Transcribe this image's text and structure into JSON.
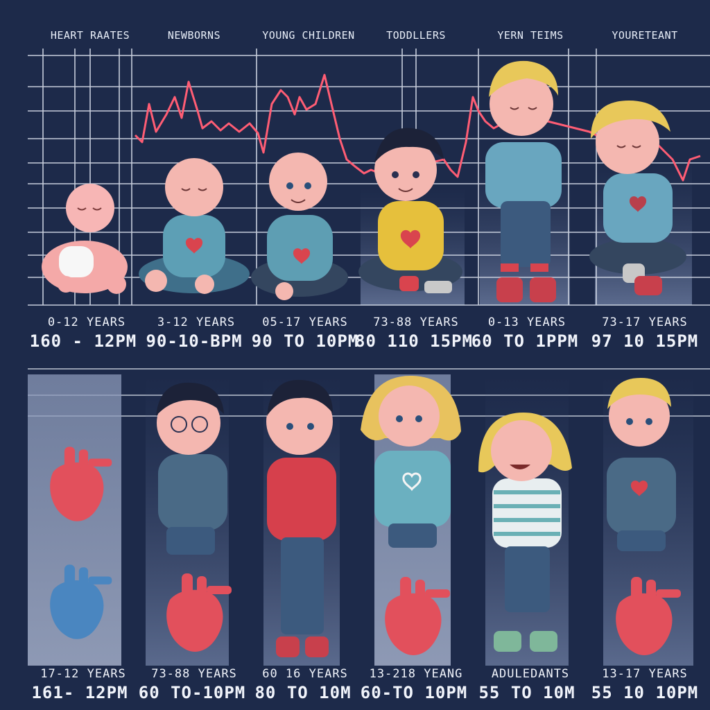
{
  "top_panel": {
    "headers": [
      "HEART RAATES",
      "NEWBORNS",
      "YOUNG CHILDREN",
      "TODDLLERS",
      "YERN TEIMS",
      "YOURETEANT"
    ],
    "ages": [
      "0-12 YEARS",
      "3-12 YEARS",
      "05-17 YEARS",
      "73-88 YEARS",
      "0-13 YEARS",
      "73-17 YEARS"
    ],
    "rates": [
      "160 - 12PM",
      "90-10-BPM",
      "90 TO 10PM",
      "80 110 15PM",
      "60 TO 1PPM",
      "97 10 15PM"
    ]
  },
  "bottom_panel": {
    "ages": [
      "17-12 YEARS",
      "73-88 YEARS",
      "60 16 YEARS",
      "13-218 YEANG",
      "ADULEDANTS",
      "13-17 YEARS"
    ],
    "rates": [
      "161- 12PM",
      "60 TO-10PM",
      "80 TO 10M",
      "60-TO 10PM",
      "55 TO 10M",
      "55 10 10PM"
    ]
  },
  "colors": {
    "background": "#1d2a4a",
    "grid": "#d9dfeb",
    "ecg_line": "#ff5d74",
    "heart_red": "#e2505c",
    "heart_blue": "#4a86c0"
  },
  "icons": [
    "heart-icon",
    "anatomical-heart-icon"
  ]
}
